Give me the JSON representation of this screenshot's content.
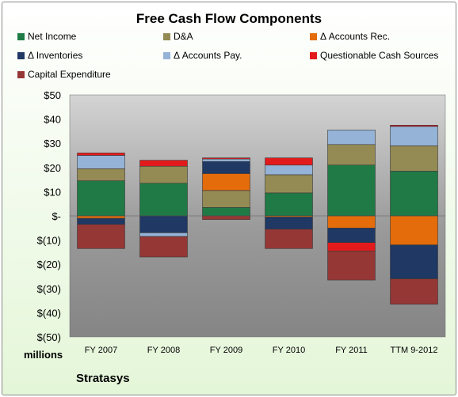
{
  "chart_data": {
    "type": "bar",
    "stacked": true,
    "title": "Free Cash Flow Components",
    "units_label": "millions",
    "company": "Stratasys",
    "ylim": [
      -50,
      50
    ],
    "y_ticks": [
      "$50",
      "$40",
      "$30",
      "$20",
      "$10",
      "$-",
      "$(10)",
      "$(20)",
      "$(30)",
      "$(40)",
      "$(50)"
    ],
    "categories": [
      "FY 2007",
      "FY 2008",
      "FY 2009",
      "FY 2010",
      "FY 2011",
      "TTM 9-2012"
    ],
    "legend_position": "top",
    "grid": false,
    "series": [
      {
        "name": "Net Income",
        "color": "#1f7a45",
        "values": [
          14.5,
          13.5,
          3.5,
          9.5,
          21,
          18.5
        ]
      },
      {
        "name": "D&A",
        "color": "#948a54",
        "values": [
          5,
          7,
          7,
          7.5,
          8.5,
          10.5
        ]
      },
      {
        "name": "Δ Accounts Rec.",
        "color": "#e46c0a",
        "values": [
          -1,
          0,
          7,
          -0.5,
          -5,
          -12
        ]
      },
      {
        "name": "Δ Inventories",
        "color": "#1f3864",
        "values": [
          -2.5,
          -7,
          5,
          -5,
          -6,
          -14
        ]
      },
      {
        "name": "Δ Accounts Pay.",
        "color": "#95b3d7",
        "values": [
          5.5,
          -1.5,
          1,
          4,
          6,
          8
        ]
      },
      {
        "name": "Questionable Cash Sources",
        "color": "#e31a1c",
        "values": [
          1,
          2.5,
          0.5,
          3,
          -3.5,
          0.5
        ]
      },
      {
        "name": "Capital Expenditure",
        "color": "#953735",
        "values": [
          -10,
          -8.5,
          -1.5,
          -8,
          -12,
          -10.5
        ]
      }
    ]
  }
}
